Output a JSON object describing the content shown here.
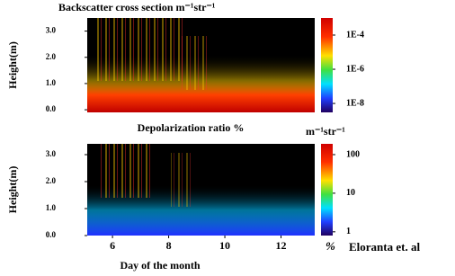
{
  "chart_data": [
    {
      "type": "heatmap",
      "title": "Backscatter cross section m⁻¹str⁻¹",
      "ylabel": "Height(m)",
      "ylim": [
        -0.1,
        3.5
      ],
      "yticks": [
        {
          "value": 3,
          "label": "3.0"
        },
        {
          "value": 2,
          "label": "2.0"
        },
        {
          "value": 1,
          "label": "1.0"
        },
        {
          "value": 0,
          "label": "0.0"
        }
      ],
      "xlim": [
        5.1,
        13.2
      ],
      "colorbar_log": true,
      "clim": [
        3e-09,
        0.001
      ],
      "cticks": [
        {
          "value": 0.0001,
          "label": "1E-4"
        },
        {
          "value": 1e-06,
          "label": "1E-6"
        },
        {
          "value": 1e-08,
          "label": "1E-8"
        }
      ],
      "colorbar_unit": "m⁻¹str⁻¹"
    },
    {
      "type": "heatmap",
      "title": "Depolarization ratio %",
      "ylabel": "Height(m)",
      "ylim": [
        0,
        3.4
      ],
      "yticks": [
        {
          "value": 3,
          "label": "3.0"
        },
        {
          "value": 2,
          "label": "2.0"
        },
        {
          "value": 1,
          "label": "1.0"
        },
        {
          "value": 0,
          "label": "0.0"
        }
      ],
      "xlim": [
        5.1,
        13.2
      ],
      "xticks": [
        6,
        8,
        10,
        12
      ],
      "xlabel": "Day of the month",
      "colorbar_log": true,
      "clim": [
        0.8,
        190
      ],
      "cticks": [
        100,
        10,
        1
      ],
      "colorbar_unit": "%"
    }
  ],
  "credit": "Eloranta et. al"
}
